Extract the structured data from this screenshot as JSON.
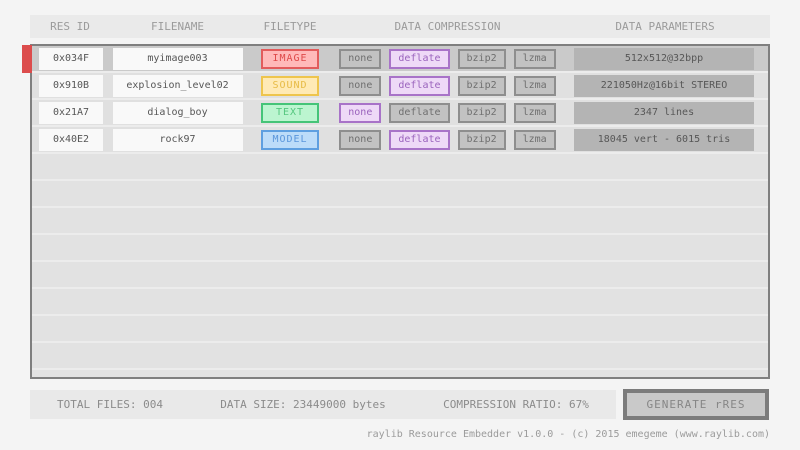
{
  "header": {
    "columns": [
      "RES ID",
      "FILENAME",
      "FILETYPE",
      "DATA COMPRESSION",
      "DATA PARAMETERS"
    ]
  },
  "compression_options": [
    "none",
    "deflate",
    "bzip2",
    "lzma"
  ],
  "rows": [
    {
      "res_id": "0x034F",
      "filename": "myimage003",
      "filetype": "IMAGE",
      "selected_compression": "deflate",
      "parameters": "512x512@32bpp",
      "selected": true
    },
    {
      "res_id": "0x910B",
      "filename": "explosion_level02",
      "filetype": "SOUND",
      "selected_compression": "deflate",
      "parameters": "221050Hz@16bit STEREO",
      "selected": false
    },
    {
      "res_id": "0x21A7",
      "filename": "dialog_boy",
      "filetype": "TEXT",
      "selected_compression": "none",
      "parameters": "2347 lines",
      "selected": false
    },
    {
      "res_id": "0x40E2",
      "filename": "rock97",
      "filetype": "MODEL",
      "selected_compression": "deflate",
      "parameters": "18045 vert - 6015 tris",
      "selected": false
    }
  ],
  "status_bar": {
    "total_files": "TOTAL FILES: 004",
    "data_size": "DATA SIZE: 23449000 bytes",
    "compression_ratio": "COMPRESSION RATIO: 67%",
    "generate_label": "GENERATE rRES"
  },
  "footer": {
    "credits": "raylib Resource Embedder v1.0.0 - (c) 2015 emegeme (www.raylib.com)"
  },
  "colors": {
    "selected_row_accent": "#dc4c4c",
    "compression_active_bg": "#eed9f7",
    "compression_active_border": "#a873c8",
    "filetypes": {
      "IMAGE": {
        "bg": "#ffb9b9",
        "border": "#e25b5b",
        "text": "#df4a4a"
      },
      "SOUND": {
        "bg": "#ffeab5",
        "border": "#eec54d",
        "text": "#e7bb45"
      },
      "TEXT": {
        "bg": "#bcf5d0",
        "border": "#45c478",
        "text": "#55c77f"
      },
      "MODEL": {
        "bg": "#bcdcf9",
        "border": "#5e9fe0",
        "text": "#5a96dc"
      }
    }
  }
}
